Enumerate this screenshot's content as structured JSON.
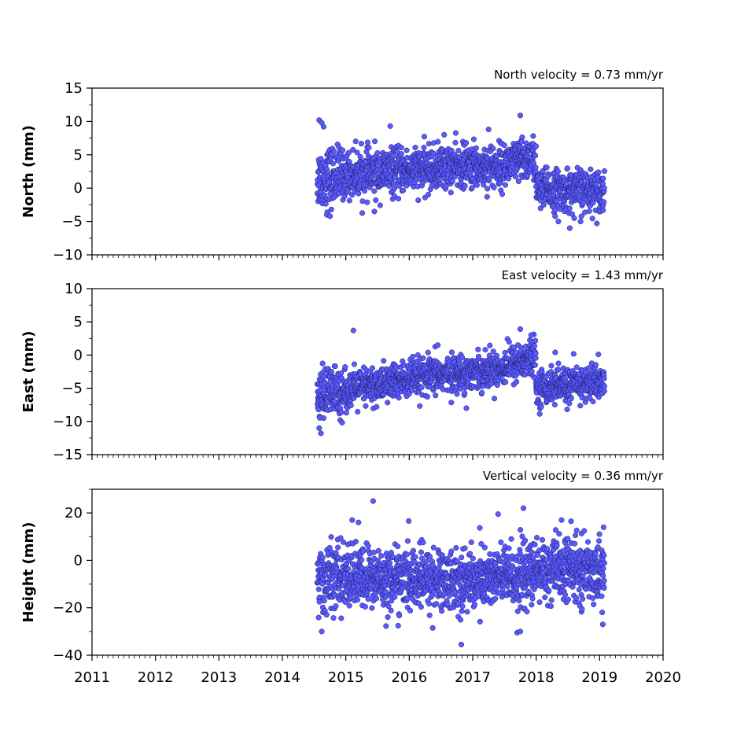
{
  "chart_data": [
    {
      "type": "scatter",
      "velocity_label": "North velocity = 0.73 mm/yr",
      "ylabel": "North (mm)",
      "xlim": [
        2011,
        2020
      ],
      "ylim": [
        -10,
        15
      ],
      "yticks": [
        -10,
        -5,
        0,
        5,
        10,
        15
      ],
      "xticks": [
        2011,
        2012,
        2013,
        2014,
        2015,
        2016,
        2017,
        2018,
        2019,
        2020
      ],
      "show_xtick_labels": false,
      "grid": false,
      "marker_color": "#5a5aff",
      "marker_edge": "#1a1a60",
      "segments": [
        {
          "x0": 2014.55,
          "x1": 2014.95,
          "mean0": 1.5,
          "mean1": 2.0,
          "sd": 2.2
        },
        {
          "x0": 2014.95,
          "x1": 2015.8,
          "mean0": 2.0,
          "mean1": 2.5,
          "sd": 1.7
        },
        {
          "x0": 2015.8,
          "x1": 2016.5,
          "mean0": 2.5,
          "mean1": 3.0,
          "sd": 1.6
        },
        {
          "x0": 2016.5,
          "x1": 2017.5,
          "mean0": 3.2,
          "mean1": 3.3,
          "sd": 1.6
        },
        {
          "x0": 2017.5,
          "x1": 2018.0,
          "mean0": 3.5,
          "mean1": 4.5,
          "sd": 1.6
        },
        {
          "x0": 2018.0,
          "x1": 2019.08,
          "mean0": -0.3,
          "mean1": -0.3,
          "sd": 1.5
        }
      ],
      "outliers": [
        [
          2014.58,
          10.2
        ],
        [
          2014.62,
          9.8
        ],
        [
          2014.65,
          9.2
        ],
        [
          2014.7,
          -4.0
        ],
        [
          2014.75,
          -4.2
        ],
        [
          2015.45,
          -3.5
        ],
        [
          2015.7,
          9.3
        ],
        [
          2016.55,
          8.0
        ],
        [
          2017.25,
          8.8
        ],
        [
          2017.75,
          10.9
        ],
        [
          2018.35,
          -5.0
        ],
        [
          2018.53,
          -6.0
        ],
        [
          2018.6,
          -4.5
        ],
        [
          2018.7,
          -5.0
        ]
      ]
    },
    {
      "type": "scatter",
      "velocity_label": "East velocity = 1.43 mm/yr",
      "ylabel": "East (mm)",
      "xlim": [
        2011,
        2020
      ],
      "ylim": [
        -15,
        10
      ],
      "yticks": [
        -15,
        -10,
        -5,
        0,
        5,
        10
      ],
      "xticks": [
        2011,
        2012,
        2013,
        2014,
        2015,
        2016,
        2017,
        2018,
        2019,
        2020
      ],
      "show_xtick_labels": false,
      "grid": false,
      "marker_color": "#5a5aff",
      "marker_edge": "#1a1a60",
      "segments": [
        {
          "x0": 2014.55,
          "x1": 2014.95,
          "mean0": -6.0,
          "mean1": -5.5,
          "sd": 2.0
        },
        {
          "x0": 2014.95,
          "x1": 2015.8,
          "mean0": -5.5,
          "mean1": -4.0,
          "sd": 1.4
        },
        {
          "x0": 2015.8,
          "x1": 2016.5,
          "mean0": -4.0,
          "mean1": -3.0,
          "sd": 1.4
        },
        {
          "x0": 2016.5,
          "x1": 2017.5,
          "mean0": -3.0,
          "mean1": -2.0,
          "sd": 1.3
        },
        {
          "x0": 2017.5,
          "x1": 2018.0,
          "mean0": -1.5,
          "mean1": -0.5,
          "sd": 1.4
        },
        {
          "x0": 2018.0,
          "x1": 2019.08,
          "mean0": -5.0,
          "mean1": -4.0,
          "sd": 1.3
        }
      ],
      "outliers": [
        [
          2014.58,
          -11.0
        ],
        [
          2014.65,
          -9.5
        ],
        [
          2015.12,
          3.7
        ],
        [
          2016.45,
          1.5
        ],
        [
          2016.9,
          -8.0
        ],
        [
          2017.75,
          3.9
        ],
        [
          2017.92,
          3.0
        ],
        [
          2018.3,
          0.4
        ],
        [
          2018.98,
          0.1
        ]
      ]
    },
    {
      "type": "scatter",
      "velocity_label": "Vertical velocity = 0.36 mm/yr",
      "ylabel": "Height (mm)",
      "xlim": [
        2011,
        2020
      ],
      "ylim": [
        -40,
        30
      ],
      "yticks": [
        -40,
        -20,
        0,
        20
      ],
      "xticks": [
        2011,
        2012,
        2013,
        2014,
        2015,
        2016,
        2017,
        2018,
        2019,
        2020
      ],
      "show_xtick_labels": true,
      "grid": false,
      "marker_color": "#5a5aff",
      "marker_edge": "#1a1a60",
      "segments": [
        {
          "x0": 2014.55,
          "x1": 2015.0,
          "mean0": -8.0,
          "mean1": -7.0,
          "sd": 7.0
        },
        {
          "x0": 2015.0,
          "x1": 2016.0,
          "mean0": -7.0,
          "mean1": -8.0,
          "sd": 6.5
        },
        {
          "x0": 2016.0,
          "x1": 2017.0,
          "mean0": -8.0,
          "mean1": -8.5,
          "sd": 6.5
        },
        {
          "x0": 2017.0,
          "x1": 2018.0,
          "mean0": -8.0,
          "mean1": -6.0,
          "sd": 6.5
        },
        {
          "x0": 2018.0,
          "x1": 2019.08,
          "mean0": -4.0,
          "mean1": -4.0,
          "sd": 6.5
        }
      ],
      "outliers": [
        [
          2015.43,
          25.0
        ],
        [
          2015.1,
          17.0
        ],
        [
          2015.2,
          16.0
        ],
        [
          2017.4,
          19.5
        ],
        [
          2017.8,
          22.0
        ],
        [
          2018.4,
          17.0
        ],
        [
          2018.55,
          16.5
        ],
        [
          2014.62,
          -30.0
        ],
        [
          2016.82,
          -35.5
        ],
        [
          2017.7,
          -30.5
        ],
        [
          2017.75,
          -30.0
        ],
        [
          2019.05,
          -27.0
        ]
      ]
    }
  ]
}
